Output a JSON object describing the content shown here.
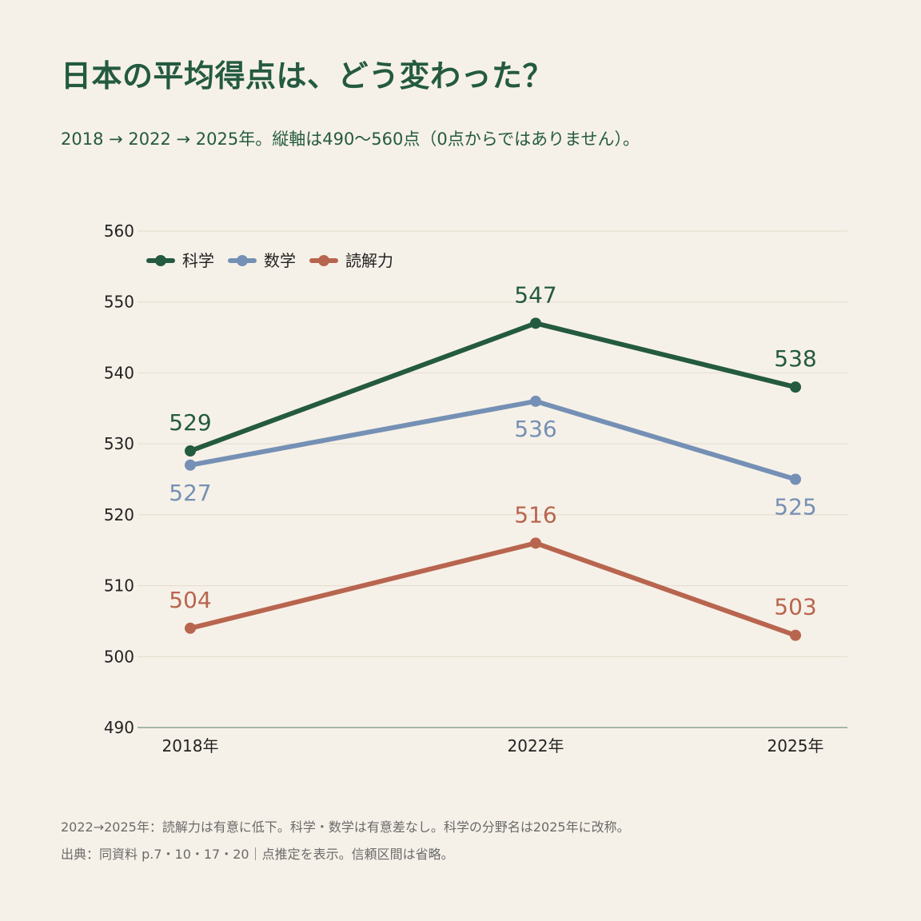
{
  "header": {
    "title": "日本の平均得点は、どう変わった？",
    "subtitle": "2018 → 2022 → 2025年。縦軸は490〜560点（0点からではありません）。"
  },
  "footer": {
    "note": "2022→2025年：読解力は有意に低下。科学・数学は有意差なし。科学の分野名は2025年に改称。",
    "source": "出典：同資料 p.7・10・17・20｜点推定を表示。信頼区間は省略。"
  },
  "chart_data": {
    "type": "line",
    "title": "日本の平均得点は、どう変わった？",
    "x": [
      2018,
      2022,
      2025
    ],
    "x_tick_labels": [
      "2018年",
      "2022年",
      "2025年"
    ],
    "ylim": [
      490,
      560
    ],
    "y_ticks": [
      490,
      500,
      510,
      520,
      530,
      540,
      550,
      560
    ],
    "grid": true,
    "legend_position": "top-left",
    "series": [
      {
        "name": "科学",
        "values": [
          529,
          547,
          538
        ],
        "color": "#245a40",
        "label_position": [
          "above",
          "above",
          "above"
        ]
      },
      {
        "name": "数学",
        "values": [
          527,
          536,
          525
        ],
        "color": "#7590b5",
        "label_position": [
          "below",
          "below",
          "below"
        ]
      },
      {
        "name": "読解力",
        "values": [
          504,
          516,
          503
        ],
        "color": "#b8654f",
        "label_position": [
          "above",
          "above",
          "above"
        ]
      }
    ]
  }
}
